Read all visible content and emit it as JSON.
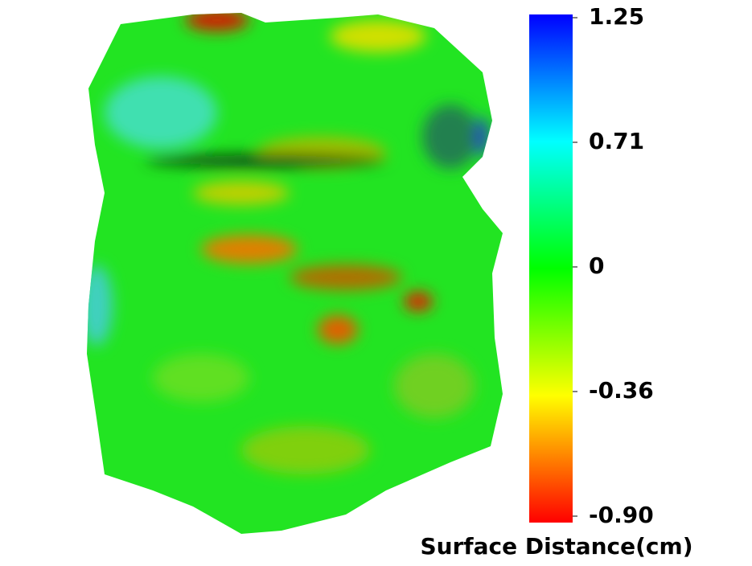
{
  "chart_data": {
    "type": "colorbar",
    "title": "Surface Distance(cm)",
    "yticks": [
      1.25,
      0.71,
      0,
      -0.36,
      {
        "value": -0.9,
        "label": "-0.90"
      }
    ],
    "colors": [
      "#0000ff",
      "#00ffff",
      "#00ff00",
      "#ffff00",
      "#ff0000"
    ]
  }
}
